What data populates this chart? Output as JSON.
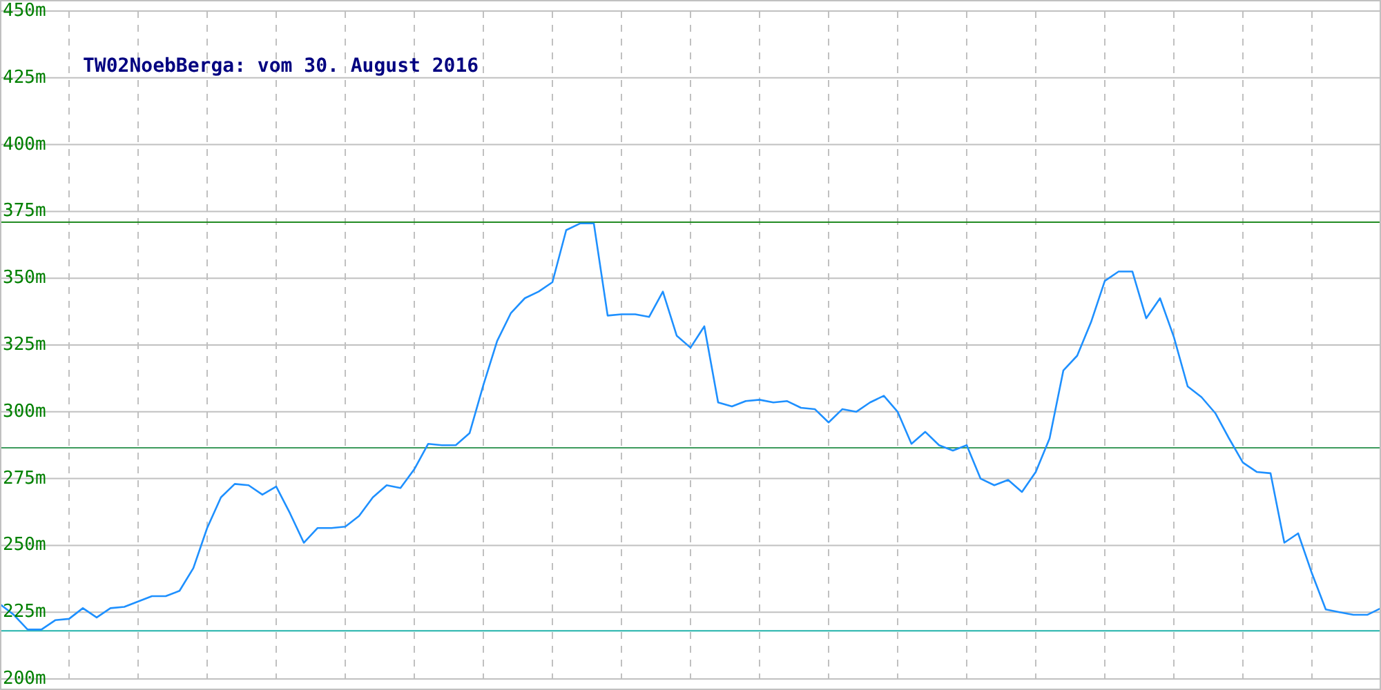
{
  "chart_data": {
    "type": "line",
    "title": "TW02NoebBerga: vom 30. August 2016",
    "categories": [
      null,
      null,
      null,
      null,
      null,
      null,
      null,
      null,
      null,
      null,
      null,
      null,
      null,
      null,
      null,
      null,
      null,
      null,
      null,
      null,
      null,
      null,
      null,
      null,
      null,
      null,
      null,
      null,
      null,
      null,
      null,
      null,
      null,
      null,
      null,
      null,
      null,
      null,
      null,
      null,
      null,
      null,
      null,
      null,
      null,
      null,
      null,
      null,
      null,
      null,
      null,
      null,
      null,
      null,
      null,
      null,
      null,
      null,
      null,
      null,
      null,
      null,
      null,
      null,
      null,
      null,
      null,
      null,
      null,
      null,
      null,
      null,
      null,
      null,
      null,
      null,
      null,
      null,
      null,
      null,
      null,
      null,
      null,
      null,
      null,
      null,
      null,
      null,
      null,
      null,
      null,
      null,
      null,
      null,
      null,
      null,
      null,
      null,
      null,
      null,
      null
    ],
    "series": [
      {
        "color": "#1e90ff",
        "values": [
          228,
          224,
          218.5,
          218.5,
          222,
          222.5,
          226.5,
          223,
          226.5,
          227,
          229,
          231,
          231,
          233,
          241.5,
          256.5,
          268,
          273,
          272.5,
          269,
          272,
          262,
          251,
          256.5,
          256.5,
          257,
          261,
          268,
          272.5,
          271.5,
          278.5,
          288,
          287.5,
          287.5,
          292,
          310,
          326.5,
          337,
          342.5,
          345,
          348.5,
          368,
          370.5,
          370.5,
          336,
          336.5,
          336.5,
          335.5,
          345,
          328.5,
          324,
          332,
          303.5,
          302,
          304,
          304.5,
          303.5,
          304,
          301.5,
          301,
          296,
          301,
          300,
          303.5,
          306,
          300,
          288,
          292.5,
          287.5,
          285.5,
          287.5,
          275,
          272.5,
          274.5,
          270,
          277.5,
          290,
          315.5,
          321,
          333.5,
          349,
          352.5,
          352.5,
          335,
          342.5,
          328,
          309.5,
          305.5,
          299.5,
          290,
          281,
          277.5,
          277,
          251,
          254.5,
          239.5,
          226,
          225,
          224,
          224,
          226.5
        ]
      }
    ],
    "ylim": [
      200,
      450
    ],
    "yticks": [
      {
        "value": 200,
        "label": "200m"
      },
      {
        "value": 225,
        "label": "225m"
      },
      {
        "value": 250,
        "label": "250m"
      },
      {
        "value": 275,
        "label": "275m"
      },
      {
        "value": 300,
        "label": "300m"
      },
      {
        "value": 325,
        "label": "325m"
      },
      {
        "value": 350,
        "label": "350m"
      },
      {
        "value": 375,
        "label": "375m"
      },
      {
        "value": 400,
        "label": "400m"
      },
      {
        "value": 425,
        "label": "425m"
      },
      {
        "value": 450,
        "label": "450m"
      }
    ],
    "tick_labels": "y",
    "grid": true,
    "marker": "none",
    "line_style": "solid",
    "legend": false,
    "ref_lines": [
      {
        "axis": "y",
        "value": 371,
        "color": "#228b22"
      },
      {
        "axis": "y",
        "value": 286.5,
        "color": "#3c9a5c"
      },
      {
        "axis": "y",
        "value": 218,
        "color": "#20b2aa"
      }
    ]
  }
}
